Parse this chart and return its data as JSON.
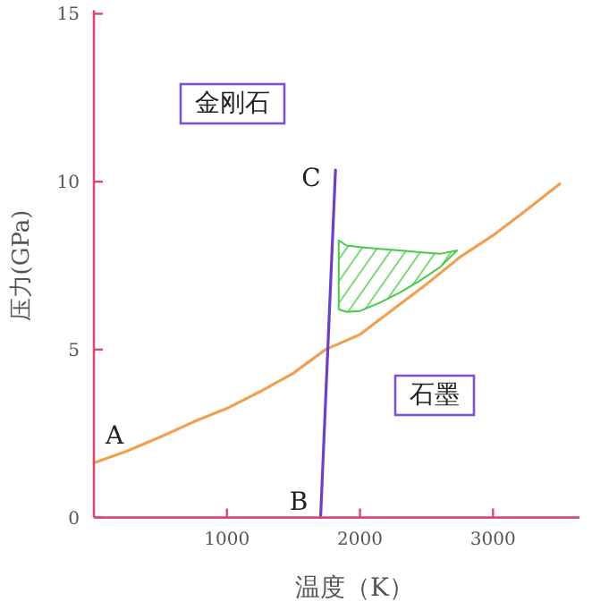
{
  "chart_data": {
    "type": "line",
    "xlabel": "温度（K）",
    "ylabel": "压力(GPa)",
    "xlim": [
      0,
      3650
    ],
    "ylim": [
      0,
      15
    ],
    "xticks": [
      1000,
      2000,
      3000
    ],
    "yticks": [
      0,
      5,
      10,
      15
    ],
    "grid": false,
    "marker": "none",
    "line_style": "solid",
    "series": [
      {
        "color": "#f0a050",
        "x": [
          0,
          250,
          500,
          750,
          1000,
          1250,
          1500,
          1740,
          2000,
          2250,
          2500,
          2750,
          3000,
          3250,
          3500
        ],
        "values": [
          1.63,
          1.98,
          2.4,
          2.85,
          3.25,
          3.75,
          4.3,
          5.0,
          5.45,
          6.2,
          6.95,
          7.75,
          8.4,
          9.15,
          9.93
        ]
      },
      {
        "color": "#6a3fd0",
        "x": [
          1704,
          1816
        ],
        "values": [
          0,
          10.35
        ]
      },
      {
        "type": "area",
        "color": "#44cc44",
        "x": [
          1840,
          1900,
          2000,
          2150,
          2300,
          2450,
          2600,
          2730,
          2600,
          2450,
          2300,
          2150,
          2000,
          1900,
          1840
        ],
        "values": [
          8.25,
          8.1,
          8.05,
          8.0,
          7.95,
          7.9,
          7.85,
          7.95,
          7.45,
          7.05,
          6.7,
          6.4,
          6.15,
          6.12,
          6.2
        ]
      }
    ],
    "annotations": [
      "A",
      "B",
      "C",
      "金刚石",
      "石墨"
    ]
  }
}
